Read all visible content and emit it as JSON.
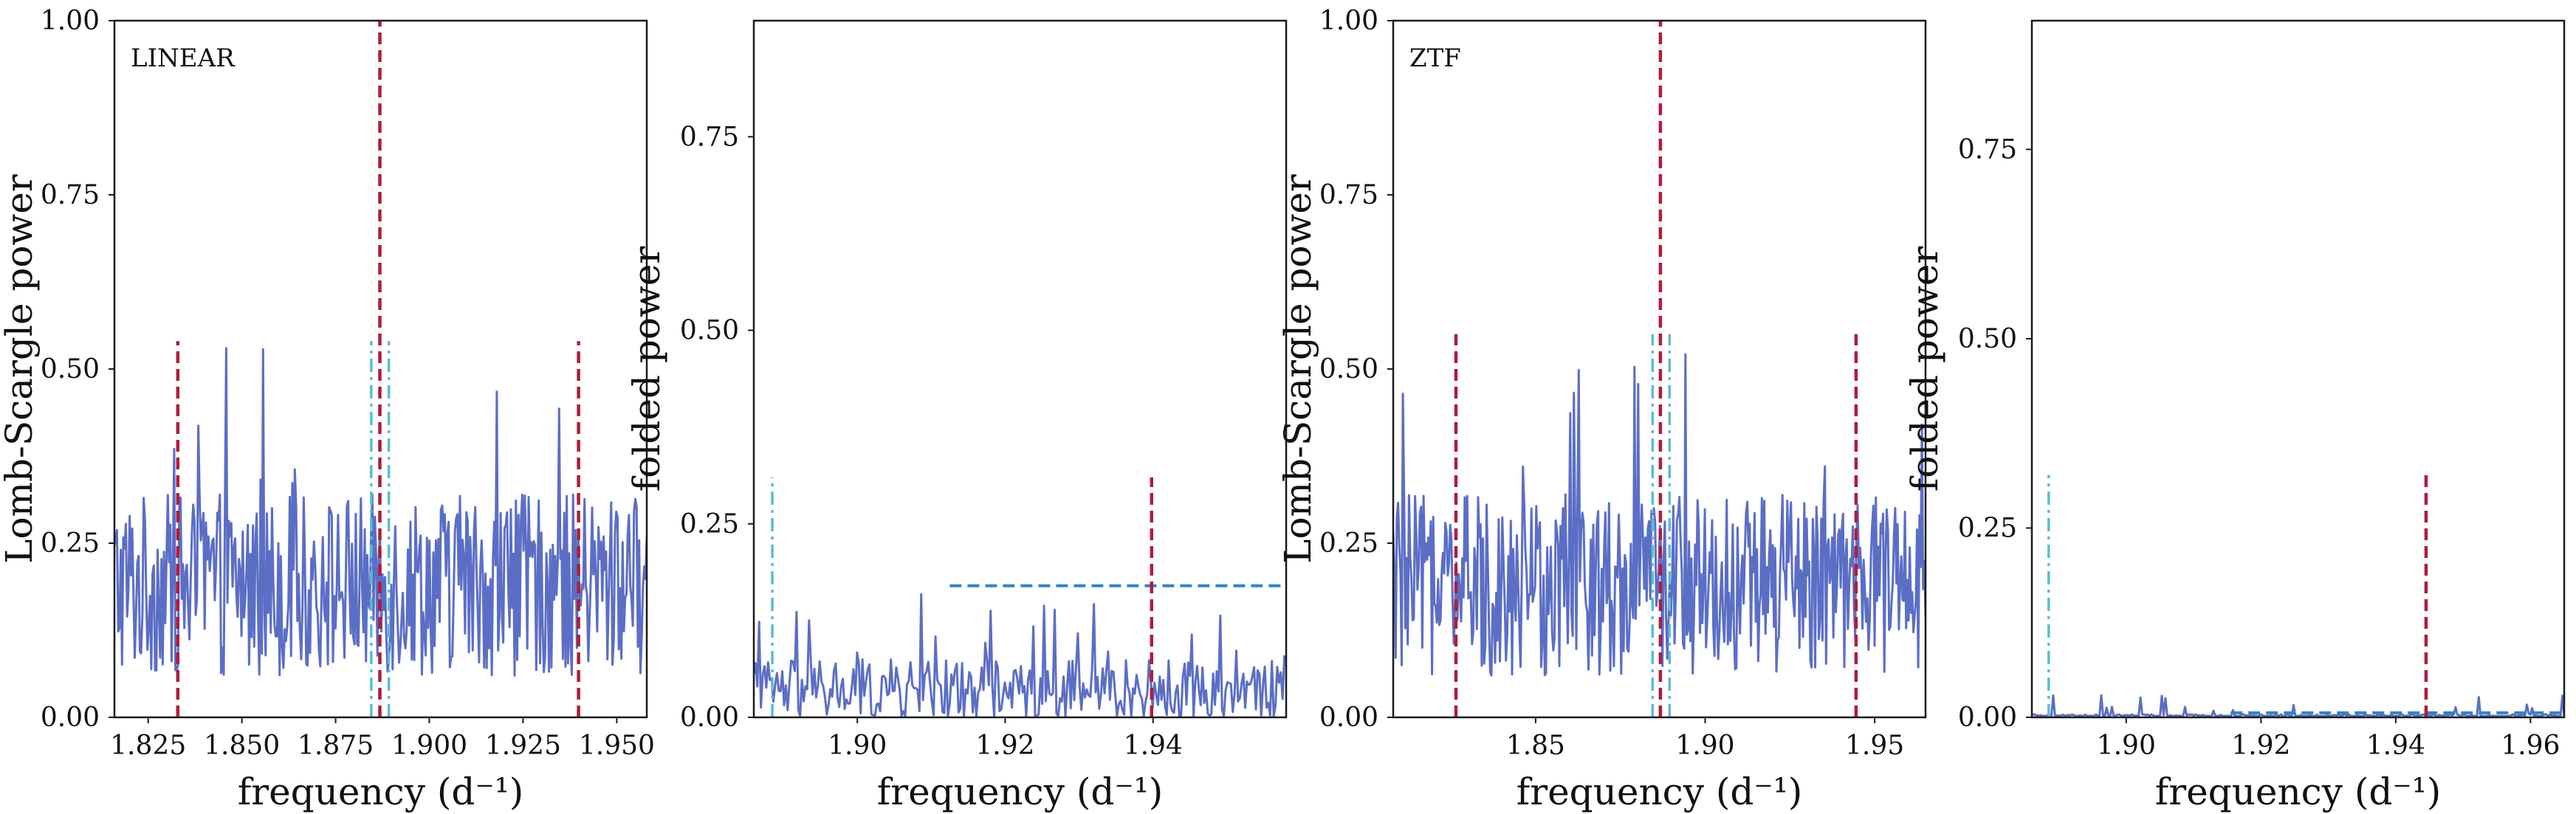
{
  "colors": {
    "periodogram": "#5b6ec6",
    "red_dashed": "#b01c3a",
    "cyan_dashdot": "#5bbcd0",
    "blue_dashed": "#2e86c8",
    "axes": "#1a1a1a"
  },
  "chart_data": [
    {
      "type": "line",
      "panel_label": "LINEAR",
      "xlabel": "frequency (d⁻¹)",
      "ylabel": "Lomb-Scargle power",
      "xlim": [
        1.816,
        1.958
      ],
      "ylim": [
        0.0,
        1.0
      ],
      "xticks": [
        1.825,
        1.85,
        1.875,
        1.9,
        1.925,
        1.95
      ],
      "xtick_labels": [
        "1.825",
        "1.850",
        "1.875",
        "1.900",
        "1.925",
        "1.950"
      ],
      "yticks": [
        0.0,
        0.25,
        0.5,
        0.75,
        1.0
      ],
      "ytick_labels": [
        "0.00",
        "0.25",
        "0.50",
        "0.75",
        "1.00"
      ],
      "series": [
        {
          "style": "periodogram",
          "x_start": 1.816,
          "x_end": 1.958,
          "n_points": 420,
          "baseline": 0.19,
          "spread": 0.13,
          "max_spike": 0.55
        }
      ],
      "vlines": [
        {
          "x": 1.8329,
          "y": [
            0.0,
            0.54
          ],
          "style": "red_dashed"
        },
        {
          "x": 1.8868,
          "y": [
            0.0,
            1.0
          ],
          "style": "red_dashed"
        },
        {
          "x": 1.9398,
          "y": [
            0.0,
            0.54
          ],
          "style": "red_dashed"
        },
        {
          "x": 1.8845,
          "y": [
            0.0,
            0.54
          ],
          "style": "cyan_dashdot"
        },
        {
          "x": 1.8892,
          "y": [
            0.0,
            0.54
          ],
          "style": "cyan_dashdot"
        }
      ],
      "hlines": []
    },
    {
      "type": "line",
      "panel_label": "",
      "xlabel": "frequency (d⁻¹)",
      "ylabel": "folded power",
      "xlim": [
        1.886,
        1.958
      ],
      "ylim": [
        0.0,
        0.9
      ],
      "xticks": [
        1.9,
        1.92,
        1.94
      ],
      "xtick_labels": [
        "1.90",
        "1.92",
        "1.94"
      ],
      "yticks": [
        0.0,
        0.25,
        0.5,
        0.75
      ],
      "ytick_labels": [
        "0.00",
        "0.25",
        "0.50",
        "0.75"
      ],
      "series": [
        {
          "style": "periodogram",
          "x_start": 1.886,
          "x_end": 1.958,
          "n_points": 300,
          "baseline": 0.035,
          "spread": 0.04,
          "max_spike": 0.16
        }
      ],
      "vlines": [
        {
          "x": 1.8885,
          "y": [
            0.0,
            0.31
          ],
          "style": "cyan_dashdot"
        },
        {
          "x": 1.9398,
          "y": [
            0.0,
            0.31
          ],
          "style": "red_dashed"
        }
      ],
      "hlines": [
        {
          "y": 0.17,
          "x": [
            1.9125,
            1.958
          ],
          "style": "blue_dashed"
        }
      ]
    },
    {
      "type": "line",
      "panel_label": "ZTF",
      "xlabel": "frequency (d⁻¹)",
      "ylabel": "Lomb-Scargle power",
      "xlim": [
        1.808,
        1.965
      ],
      "ylim": [
        0.0,
        1.0
      ],
      "xticks": [
        1.85,
        1.9,
        1.95
      ],
      "xtick_labels": [
        "1.85",
        "1.90",
        "1.95"
      ],
      "yticks": [
        0.0,
        0.25,
        0.5,
        0.75,
        1.0
      ],
      "ytick_labels": [
        "0.00",
        "0.25",
        "0.50",
        "0.75",
        "1.00"
      ],
      "series": [
        {
          "style": "periodogram",
          "x_start": 1.808,
          "x_end": 1.965,
          "n_points": 440,
          "baseline": 0.19,
          "spread": 0.13,
          "max_spike": 0.55
        }
      ],
      "vlines": [
        {
          "x": 1.8265,
          "y": [
            0.0,
            0.55
          ],
          "style": "red_dashed"
        },
        {
          "x": 1.8868,
          "y": [
            0.0,
            1.0
          ],
          "style": "red_dashed"
        },
        {
          "x": 1.9445,
          "y": [
            0.0,
            0.55
          ],
          "style": "red_dashed"
        },
        {
          "x": 1.8845,
          "y": [
            0.0,
            0.55
          ],
          "style": "cyan_dashdot"
        },
        {
          "x": 1.8895,
          "y": [
            0.0,
            0.55
          ],
          "style": "cyan_dashdot"
        }
      ],
      "hlines": []
    },
    {
      "type": "line",
      "panel_label": "",
      "xlabel": "frequency (d⁻¹)",
      "ylabel": "folded power",
      "xlim": [
        1.886,
        1.965
      ],
      "ylim": [
        0.0,
        0.92
      ],
      "xticks": [
        1.9,
        1.92,
        1.94,
        1.96
      ],
      "xtick_labels": [
        "1.90",
        "1.92",
        "1.94",
        "1.96"
      ],
      "yticks": [
        0.0,
        0.25,
        0.5,
        0.75
      ],
      "ytick_labels": [
        "0.00",
        "0.25",
        "0.50",
        "0.75"
      ],
      "series": [
        {
          "style": "periodogram",
          "x_start": 1.886,
          "x_end": 1.965,
          "n_points": 300,
          "baseline": 0.002,
          "spread": 0.002,
          "max_spike": 0.03
        }
      ],
      "vlines": [
        {
          "x": 1.8885,
          "y": [
            0.0,
            0.32
          ],
          "style": "cyan_dashdot"
        },
        {
          "x": 1.9445,
          "y": [
            0.0,
            0.32
          ],
          "style": "red_dashed"
        }
      ],
      "hlines": [
        {
          "y": 0.006,
          "x": [
            1.9155,
            1.965
          ],
          "style": "blue_dashed"
        }
      ]
    }
  ]
}
